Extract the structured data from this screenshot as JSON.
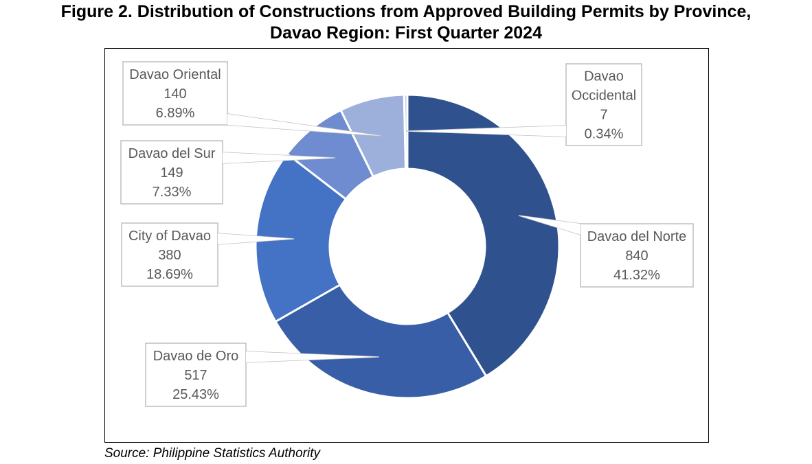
{
  "title_line1": "Figure 2. Distribution of Constructions from Approved Building Permits by Province,",
  "title_line2": "Davao Region: First Quarter 2024",
  "source": "Source: Philippine Statistics Authority",
  "chart_data": {
    "type": "pie",
    "variant": "doughnut",
    "title": "Figure 2. Distribution of Constructions from Approved Building Permits by Province, Davao Region: First Quarter 2024",
    "legend": "none",
    "series": [
      {
        "values": [
          {
            "label": "Davao del Norte",
            "value": 840,
            "percent": "41.32%",
            "color": "#2f528f"
          },
          {
            "label": "Davao de Oro",
            "value": 517,
            "percent": "25.43%",
            "color": "#375ea6"
          },
          {
            "label": "City of Davao",
            "value": 380,
            "percent": "18.69%",
            "color": "#4472c4"
          },
          {
            "label": "Davao del Sur",
            "value": 149,
            "percent": "7.33%",
            "color": "#6f8cd0"
          },
          {
            "label": "Davao Oriental",
            "value": 140,
            "percent": "6.89%",
            "color": "#9dafdb"
          },
          {
            "label": "Davao Occidental",
            "value": 7,
            "percent": "0.34%",
            "color": "#c5d0ea"
          }
        ]
      }
    ]
  }
}
